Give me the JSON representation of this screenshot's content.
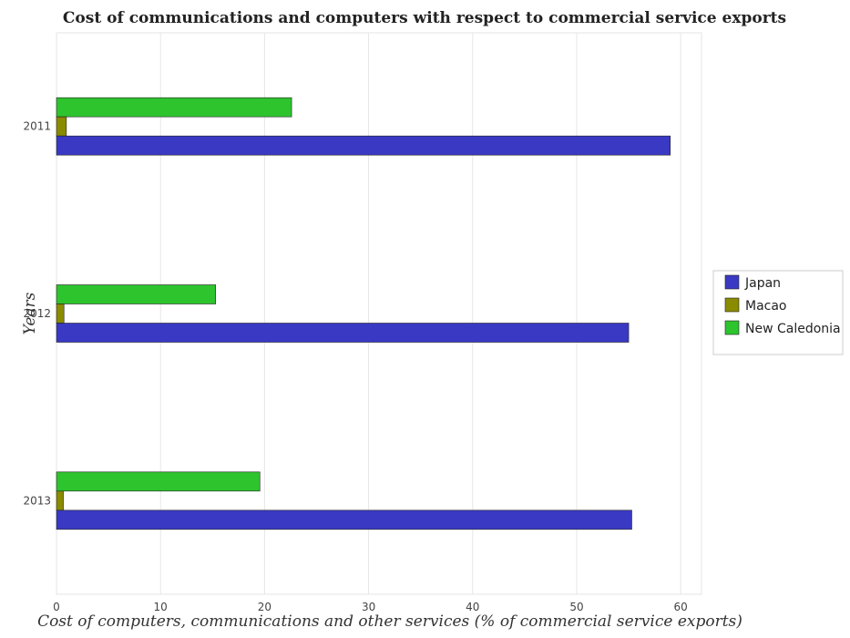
{
  "colors": {
    "Japan": "#3939c3",
    "Macao": "#8b8b00",
    "New Caledonia": "#2ec42e",
    "bar_edge": "#222222",
    "grid": "#e6e6e6"
  },
  "chart_data": {
    "type": "bar",
    "orientation": "horizontal",
    "title": "Cost of communications and computers with respect to commercial service exports",
    "xlabel": "Cost of computers, communications and other services (% of commercial service exports)",
    "ylabel": "Years",
    "categories": [
      "2011",
      "2012",
      "2013"
    ],
    "xlim": [
      0,
      62
    ],
    "xticks": [
      0,
      10,
      20,
      30,
      40,
      50,
      60
    ],
    "grid": true,
    "legend_position": "right",
    "series": [
      {
        "name": "Japan",
        "values": [
          59.0,
          55.0,
          55.3
        ]
      },
      {
        "name": "Macao",
        "values": [
          0.95,
          0.72,
          0.66
        ]
      },
      {
        "name": "New Caledonia",
        "values": [
          22.6,
          15.3,
          19.55
        ]
      }
    ]
  }
}
